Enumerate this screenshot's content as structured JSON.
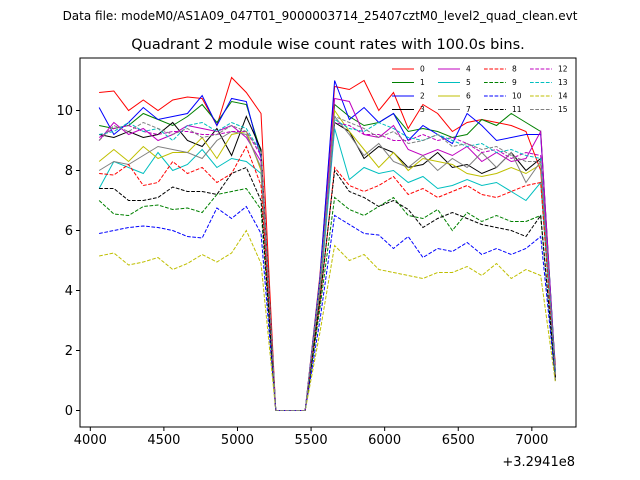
{
  "chart_data": {
    "type": "line",
    "suptitle": "Data file: modeM0/AS1A09_047T01_9000003714_25407cztM0_level2_quad_clean.evt",
    "title": "Quadrant 2 module wise count rates with 100.0s bins.",
    "xlabel": "",
    "ylabel": "",
    "x_offset_label": "+3.2941e8",
    "xlim": [
      3930,
      7300
    ],
    "ylim": [
      -0.55,
      11.75
    ],
    "x_ticks": [
      4000,
      4500,
      5000,
      5500,
      6000,
      6500,
      7000
    ],
    "y_ticks": [
      0,
      2,
      4,
      6,
      8,
      10
    ],
    "grid": false,
    "legend_position": "top-right",
    "x": [
      4060,
      4160,
      4260,
      4360,
      4460,
      4560,
      4660,
      4760,
      4860,
      4960,
      5060,
      5160,
      5260,
      5360,
      5460,
      5560,
      5660,
      5760,
      5860,
      5960,
      6060,
      6160,
      6260,
      6360,
      6460,
      6560,
      6660,
      6760,
      6860,
      6960,
      7060,
      7160
    ],
    "series": [
      {
        "name": "0",
        "color": "#ff0000",
        "dash": "solid",
        "values": [
          10.6,
          10.65,
          10.0,
          10.35,
          10.0,
          10.35,
          10.45,
          10.4,
          9.5,
          11.1,
          10.6,
          9.9,
          0,
          0,
          0,
          4.5,
          10.8,
          10.7,
          11.0,
          10.0,
          10.6,
          9.4,
          10.2,
          9.9,
          9.3,
          9.6,
          9.7,
          9.6,
          9.5,
          9.3,
          8.0,
          1.5
        ]
      },
      {
        "name": "1",
        "color": "#008000",
        "dash": "solid",
        "values": [
          9.5,
          9.4,
          9.5,
          9.9,
          9.7,
          9.5,
          9.8,
          10.2,
          9.6,
          10.3,
          10.2,
          8.6,
          0,
          0,
          0,
          4.2,
          10.2,
          9.8,
          9.5,
          9.6,
          9.9,
          9.3,
          9.4,
          9.3,
          9.1,
          9.2,
          9.7,
          9.5,
          9.9,
          9.6,
          9.3,
          1.3
        ]
      },
      {
        "name": "2",
        "color": "#0000ff",
        "dash": "solid",
        "values": [
          10.1,
          9.2,
          9.6,
          10.1,
          9.7,
          9.8,
          9.9,
          10.5,
          9.5,
          10.4,
          10.3,
          8.4,
          0,
          0,
          0,
          4.4,
          11.0,
          9.7,
          10.1,
          9.6,
          9.9,
          9.0,
          9.5,
          9.2,
          8.9,
          9.9,
          9.5,
          9.0,
          9.1,
          9.2,
          9.2,
          1.3
        ]
      },
      {
        "name": "3",
        "color": "#000000",
        "dash": "solid",
        "values": [
          9.2,
          9.1,
          9.3,
          9.1,
          9.2,
          9.6,
          9.0,
          8.8,
          9.4,
          8.5,
          9.8,
          8.7,
          0,
          0,
          0,
          4.1,
          9.6,
          9.3,
          8.4,
          8.8,
          8.6,
          8.1,
          8.2,
          8.6,
          8.1,
          8.2,
          7.9,
          8.1,
          8.6,
          8.0,
          8.4,
          1.2
        ]
      },
      {
        "name": "4",
        "color": "#bf00bf",
        "dash": "solid",
        "values": [
          9.0,
          9.6,
          9.2,
          9.4,
          9.0,
          9.2,
          9.5,
          9.4,
          9.3,
          9.5,
          9.1,
          8.3,
          0,
          0,
          0,
          4.0,
          10.4,
          10.3,
          9.2,
          9.1,
          9.5,
          8.7,
          8.5,
          8.7,
          8.5,
          8.8,
          8.3,
          8.6,
          8.3,
          8.4,
          9.3,
          1.2
        ]
      },
      {
        "name": "5",
        "color": "#00bfbf",
        "dash": "solid",
        "values": [
          7.4,
          8.3,
          8.1,
          7.9,
          8.6,
          8.0,
          8.2,
          8.7,
          8.1,
          8.4,
          8.3,
          7.9,
          0,
          0,
          0,
          3.8,
          9.4,
          7.7,
          8.1,
          7.9,
          8.0,
          7.6,
          7.8,
          7.4,
          7.5,
          7.7,
          7.5,
          7.6,
          7.3,
          7.0,
          7.6,
          1.1
        ]
      },
      {
        "name": "6",
        "color": "#bfbf00",
        "dash": "solid",
        "values": [
          8.3,
          8.7,
          8.3,
          8.8,
          8.4,
          8.6,
          8.6,
          9.1,
          8.4,
          9.2,
          9.3,
          8.0,
          0,
          0,
          0,
          3.9,
          10.0,
          9.3,
          8.7,
          8.1,
          8.6,
          8.0,
          8.4,
          8.3,
          8.2,
          7.9,
          7.8,
          7.9,
          8.1,
          7.9,
          8.2,
          1.2
        ]
      },
      {
        "name": "7",
        "color": "#808080",
        "dash": "solid",
        "values": [
          8.0,
          8.3,
          8.2,
          8.5,
          8.8,
          8.7,
          8.6,
          8.4,
          9.0,
          9.3,
          9.2,
          8.1,
          0,
          0,
          0,
          4.0,
          9.8,
          9.2,
          8.5,
          8.9,
          8.3,
          8.1,
          8.5,
          8.0,
          8.4,
          8.1,
          8.6,
          8.1,
          8.6,
          7.6,
          8.3,
          1.2
        ]
      },
      {
        "name": "8",
        "color": "#ff0000",
        "dash": "dashed",
        "values": [
          7.9,
          7.85,
          8.2,
          7.5,
          7.6,
          8.3,
          7.9,
          8.1,
          7.6,
          7.9,
          8.8,
          7.5,
          0,
          0,
          0,
          3.6,
          8.1,
          7.5,
          7.3,
          7.5,
          7.8,
          7.2,
          7.4,
          7.1,
          7.3,
          7.5,
          7.2,
          7.1,
          7.3,
          7.5,
          7.6,
          1.1
        ]
      },
      {
        "name": "9",
        "color": "#008000",
        "dash": "dashed",
        "values": [
          7.0,
          6.55,
          6.5,
          6.8,
          6.85,
          6.7,
          6.75,
          6.6,
          7.2,
          7.3,
          7.4,
          6.7,
          0,
          0,
          0,
          3.4,
          7.1,
          6.7,
          6.5,
          6.8,
          7.1,
          6.5,
          6.4,
          6.7,
          6.0,
          6.6,
          6.3,
          6.5,
          6.3,
          6.3,
          6.5,
          1.0
        ]
      },
      {
        "name": "10",
        "color": "#0000ff",
        "dash": "dashed",
        "values": [
          5.9,
          6.0,
          6.1,
          6.15,
          6.1,
          6.0,
          5.8,
          5.75,
          6.75,
          6.4,
          6.8,
          5.9,
          0,
          0,
          0,
          3.0,
          6.5,
          6.2,
          5.9,
          5.85,
          5.4,
          5.8,
          5.1,
          5.4,
          5.3,
          5.6,
          5.2,
          5.4,
          5.2,
          5.4,
          5.8,
          1.0
        ]
      },
      {
        "name": "11",
        "color": "#000000",
        "dash": "dashed",
        "values": [
          7.4,
          7.4,
          7.0,
          7.0,
          7.1,
          7.45,
          7.3,
          7.3,
          7.2,
          7.9,
          8.1,
          7.0,
          0,
          0,
          0,
          3.7,
          8.0,
          7.3,
          7.1,
          6.8,
          7.0,
          6.7,
          6.1,
          6.4,
          6.6,
          6.4,
          6.2,
          6.1,
          6.0,
          5.8,
          6.5,
          1.1
        ]
      },
      {
        "name": "12",
        "color": "#bf00bf",
        "dash": "dashed",
        "values": [
          9.1,
          9.4,
          9.5,
          9.3,
          9.2,
          9.3,
          9.3,
          9.2,
          9.2,
          9.3,
          9.3,
          8.5,
          0,
          0,
          0,
          4.2,
          9.6,
          9.5,
          9.2,
          9.2,
          9.0,
          9.0,
          9.2,
          9.0,
          9.1,
          8.9,
          8.6,
          8.7,
          8.4,
          8.6,
          8.5,
          1.2
        ]
      },
      {
        "name": "13",
        "color": "#00bfbf",
        "dash": "dashed",
        "values": [
          9.2,
          9.3,
          9.6,
          9.3,
          9.4,
          9.0,
          9.5,
          9.6,
          9.3,
          9.6,
          9.4,
          8.6,
          0,
          0,
          0,
          4.3,
          9.7,
          9.4,
          9.3,
          9.6,
          9.4,
          9.1,
          9.0,
          9.2,
          9.0,
          8.8,
          8.9,
          8.6,
          8.7,
          8.5,
          8.4,
          1.2
        ]
      },
      {
        "name": "14",
        "color": "#bfbf00",
        "dash": "dashed",
        "values": [
          5.15,
          5.25,
          4.85,
          4.95,
          5.1,
          4.7,
          4.9,
          5.2,
          4.95,
          5.25,
          6.0,
          4.9,
          0,
          0,
          0,
          2.6,
          5.5,
          5.0,
          5.2,
          4.7,
          4.6,
          4.5,
          4.4,
          4.6,
          4.6,
          4.8,
          4.5,
          4.9,
          4.4,
          4.7,
          4.5,
          0.95
        ]
      },
      {
        "name": "15",
        "color": "#808080",
        "dash": "dashed",
        "values": [
          9.0,
          9.5,
          9.3,
          9.6,
          9.4,
          9.2,
          9.4,
          9.1,
          9.2,
          9.5,
          9.3,
          8.6,
          0,
          0,
          0,
          4.2,
          9.8,
          9.6,
          9.4,
          9.1,
          9.3,
          8.9,
          9.0,
          9.2,
          8.8,
          8.9,
          8.7,
          8.8,
          8.5,
          8.3,
          8.3,
          1.2
        ]
      }
    ]
  }
}
